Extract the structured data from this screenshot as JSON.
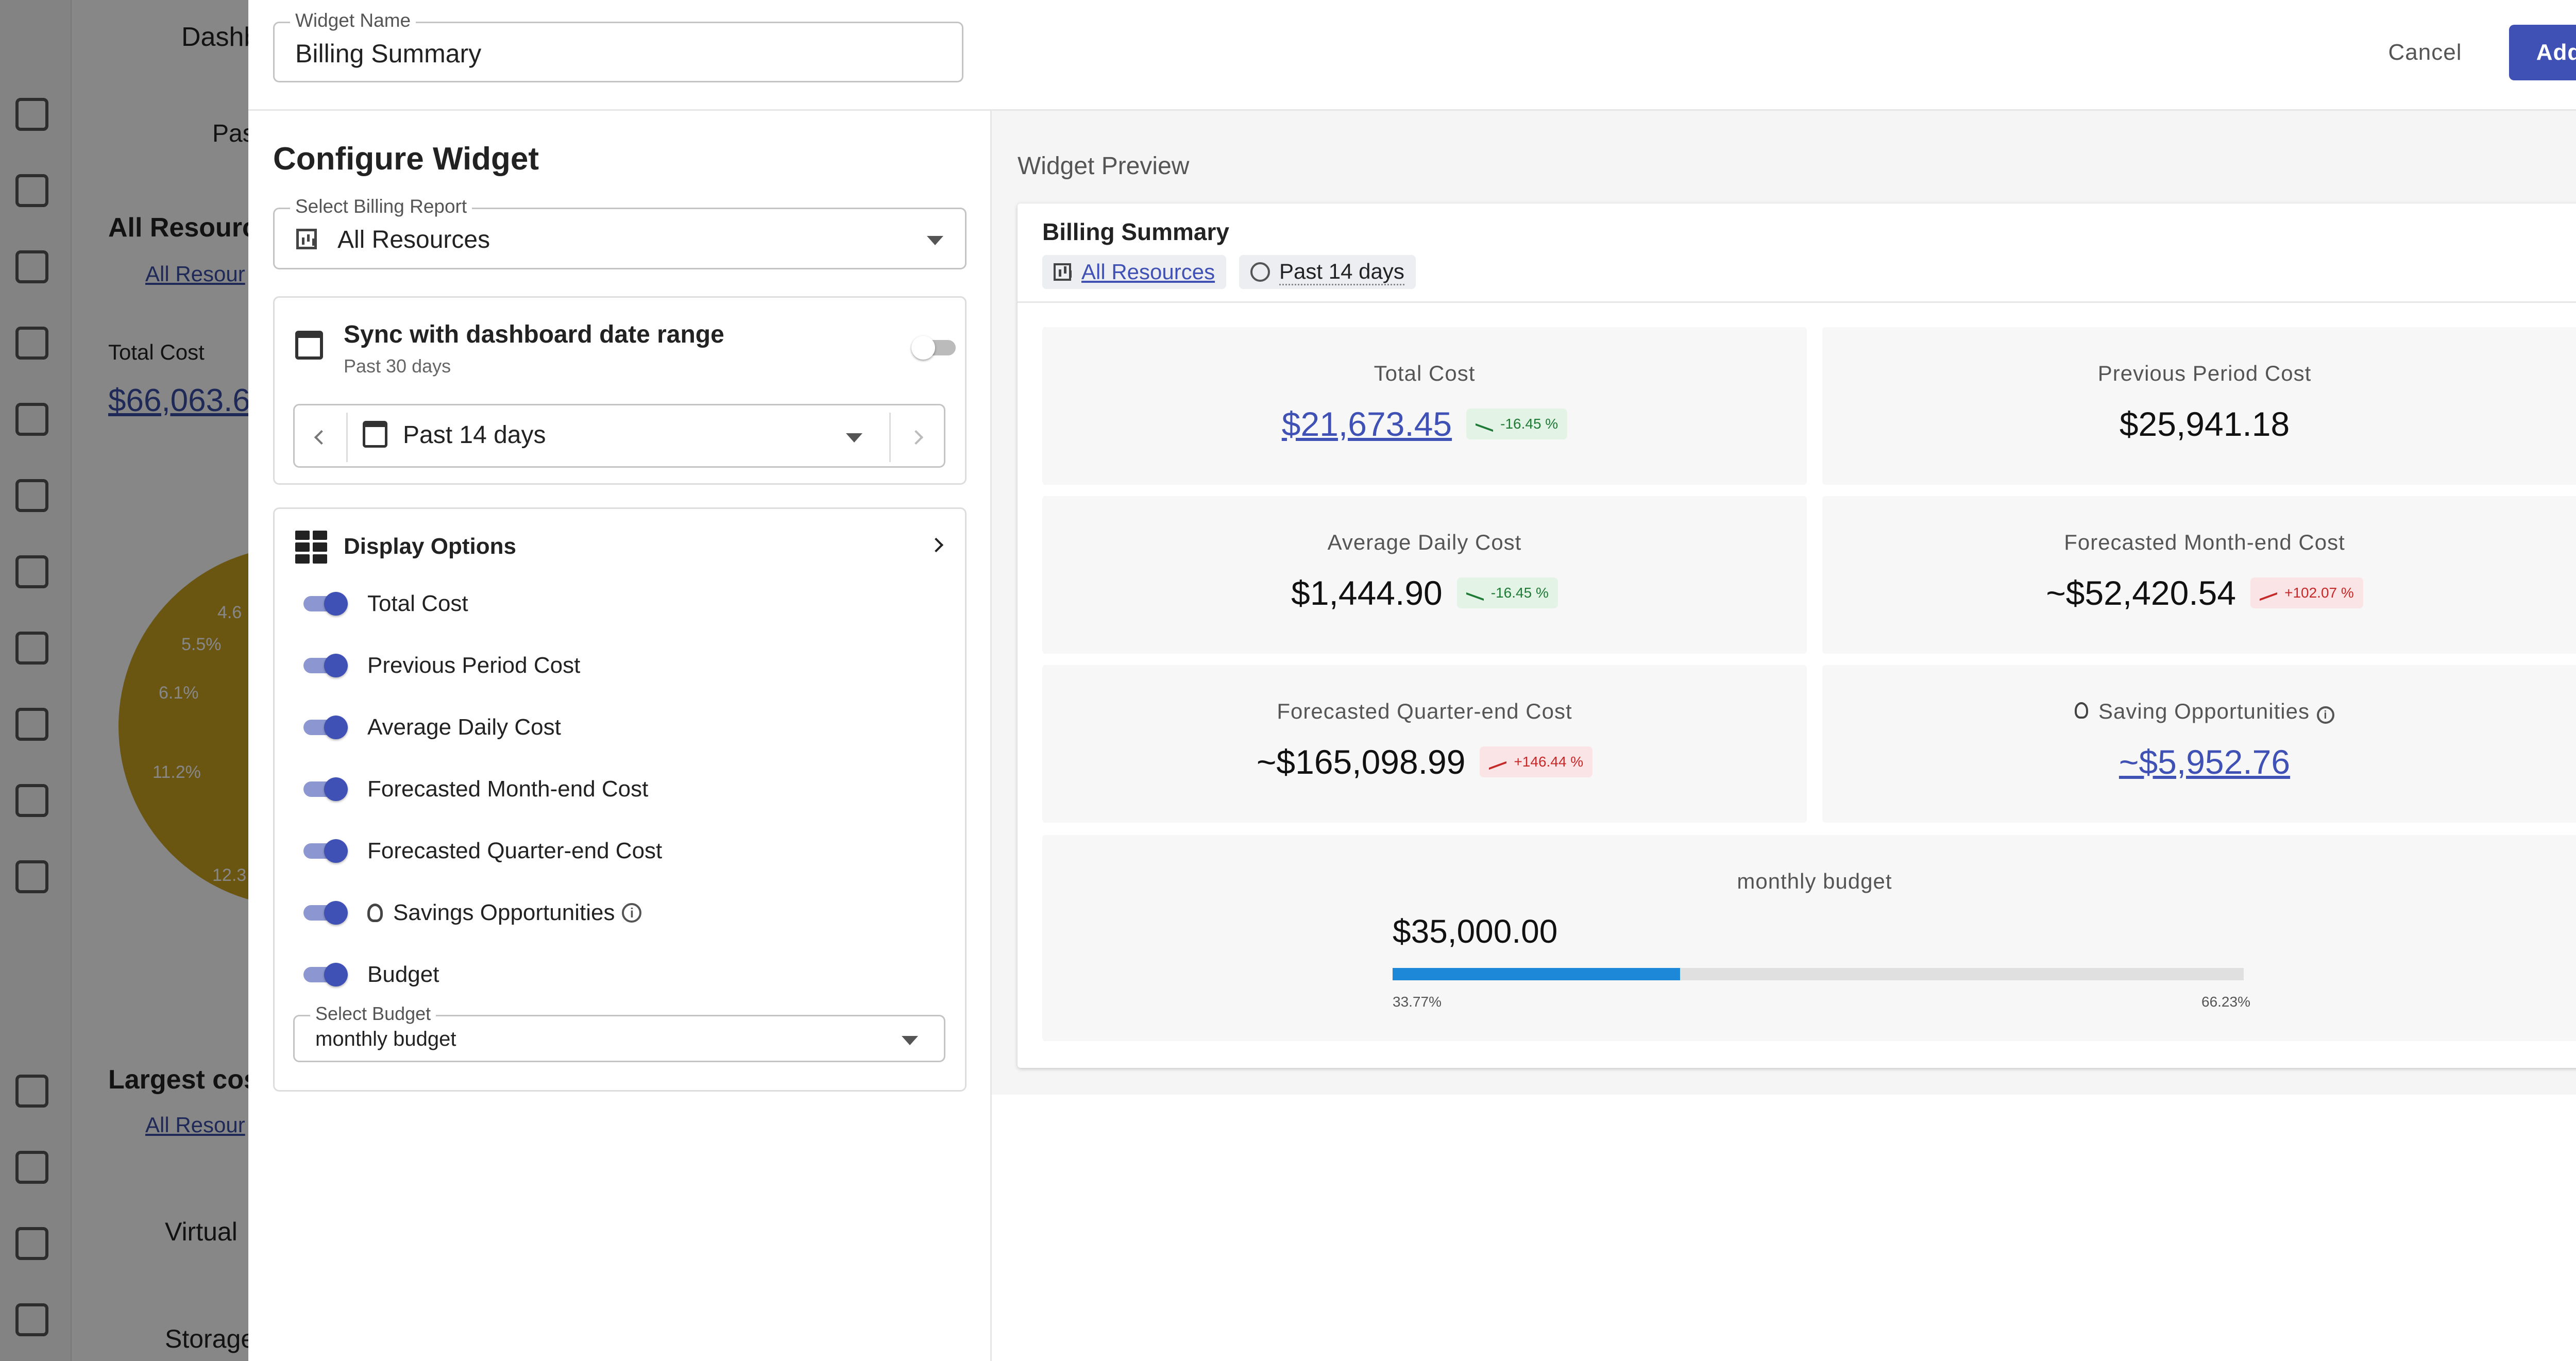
{
  "background": {
    "header_title": "Dashb",
    "date_chip": "Past",
    "widget1_title": "All Resource",
    "widget1_chip": "All Resour",
    "total_cost_label": "Total Cost",
    "total_cost_value": "$66,063.6",
    "pie_labels": [
      "4.6",
      "5.5%",
      "6.1%",
      "11.2%",
      "12.3"
    ],
    "widget2_title": "Largest cost",
    "widget2_chip": "All Resour",
    "row1": "Virtual",
    "row2": "Storage"
  },
  "header": {
    "widget_name_label": "Widget Name",
    "widget_name_value": "Billing Summary",
    "cancel_label": "Cancel",
    "add_label": "Add"
  },
  "config": {
    "title": "Configure Widget",
    "report_label": "Select Billing Report",
    "report_value": "All Resources",
    "sync_title": "Sync with dashboard date range",
    "sync_subtitle": "Past 30 days",
    "sync_enabled": false,
    "date_value": "Past 14 days",
    "display_title": "Display Options",
    "options": [
      {
        "label": "Total Cost",
        "enabled": true
      },
      {
        "label": "Previous Period Cost",
        "enabled": true
      },
      {
        "label": "Average Daily Cost",
        "enabled": true
      },
      {
        "label": "Forecasted Month-end Cost",
        "enabled": true
      },
      {
        "label": "Forecasted Quarter-end Cost",
        "enabled": true
      },
      {
        "label": "Savings Opportunities",
        "enabled": true,
        "icon": "bulb-icon"
      },
      {
        "label": "Budget",
        "enabled": true
      }
    ],
    "budget_label": "Select Budget",
    "budget_value": "monthly budget"
  },
  "preview": {
    "title": "Widget Preview",
    "widget_title": "Billing Summary",
    "report_chip": "All Resources",
    "date_chip": "Past 14 days",
    "tiles": {
      "total_cost": {
        "label": "Total Cost",
        "value": "$21,673.45",
        "badge": "-16.45 %"
      },
      "previous_cost": {
        "label": "Previous Period Cost",
        "value": "$25,941.18"
      },
      "avg_daily": {
        "label": "Average Daily Cost",
        "value": "$1,444.90",
        "badge": "-16.45 %"
      },
      "month_end": {
        "label": "Forecasted Month-end Cost",
        "value": "~$52,420.54",
        "badge": "+102.07 %"
      },
      "quarter_end": {
        "label": "Forecasted Quarter-end Cost",
        "value": "~$165,098.99",
        "badge": "+146.44 %"
      },
      "savings": {
        "label": "Saving Opportunities",
        "value": "~$5,952.76"
      }
    },
    "budget": {
      "label": "monthly budget",
      "value": "$35,000.00",
      "used_label": "33.77%",
      "remaining_label": "66.23%",
      "used_fraction": 0.3377
    }
  },
  "colors": {
    "accent": "#3f51b5",
    "decrease": "#1f7a36",
    "increase": "#c62828",
    "budget_bar": "#1e88d8"
  }
}
